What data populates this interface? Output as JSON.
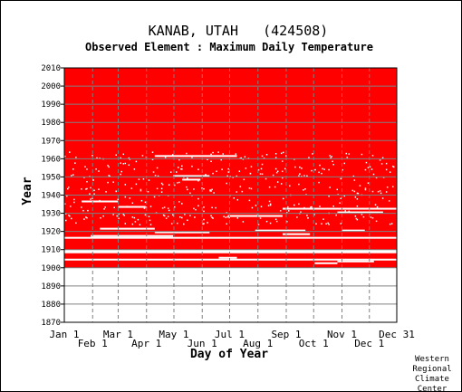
{
  "chart_data": {
    "type": "heatmap",
    "title": "KANAB, UTAH   (424508)",
    "subtitle": "Observed Element : Maximum Daily Temperature",
    "xlabel": "Day of Year",
    "ylabel": "Year",
    "ylim": [
      1870,
      2010
    ],
    "y_ticks": [
      1870,
      1880,
      1890,
      1900,
      1910,
      1920,
      1930,
      1940,
      1950,
      1960,
      1970,
      1980,
      1990,
      2000,
      2010
    ],
    "x_ticks_row1": [
      {
        "label": "Jan 1",
        "day": 1
      },
      {
        "label": "Mar 1",
        "day": 60
      },
      {
        "label": "May 1",
        "day": 121
      },
      {
        "label": "Jul 1",
        "day": 182
      },
      {
        "label": "Sep 1",
        "day": 244
      },
      {
        "label": "Nov 1",
        "day": 305
      },
      {
        "label": "Dec 31",
        "day": 365
      }
    ],
    "x_ticks_row2": [
      {
        "label": "Feb 1",
        "day": 32
      },
      {
        "label": "Apr 1",
        "day": 91
      },
      {
        "label": "Jun 1",
        "day": 152
      },
      {
        "label": "Aug 1",
        "day": 213
      },
      {
        "label": "Oct 1",
        "day": 274
      },
      {
        "label": "Dec 1",
        "day": 335
      }
    ],
    "grid": true,
    "colors": {
      "observed": "#ff0000",
      "missing": "#ffffff",
      "grid": "#808080"
    },
    "observed_year_blocks": [
      [
        1901,
        1904
      ],
      [
        1906,
        1908
      ],
      [
        1911,
        1916
      ],
      [
        1918,
        2010
      ]
    ],
    "missing_years": [
      1870,
      1900,
      1905,
      1909,
      1910,
      1917
    ],
    "missing_gaps": [
      {
        "year": 1906,
        "days": [
          170,
          190
        ]
      },
      {
        "year": 1903,
        "days": [
          275,
          300
        ]
      },
      {
        "year": 1904,
        "days": [
          300,
          340
        ]
      },
      {
        "year": 1918,
        "days": [
          30,
          120
        ]
      },
      {
        "year": 1920,
        "days": [
          100,
          160
        ]
      },
      {
        "year": 1921,
        "days": [
          210,
          265
        ]
      },
      {
        "year": 1921,
        "days": [
          305,
          330
        ]
      },
      {
        "year": 1919,
        "days": [
          240,
          270
        ]
      },
      {
        "year": 1922,
        "days": [
          40,
          100
        ]
      },
      {
        "year": 1929,
        "days": [
          180,
          240
        ]
      },
      {
        "year": 1931,
        "days": [
          300,
          350
        ]
      },
      {
        "year": 1933,
        "days": [
          240,
          365
        ]
      },
      {
        "year": 1934,
        "days": [
          60,
          90
        ]
      },
      {
        "year": 1937,
        "days": [
          20,
          60
        ]
      },
      {
        "year": 1949,
        "days": [
          130,
          150
        ]
      },
      {
        "year": 1951,
        "days": [
          120,
          160
        ]
      },
      {
        "year": 1962,
        "days": [
          100,
          190
        ]
      }
    ]
  },
  "credit": {
    "line1": "Western",
    "line2": "Regional",
    "line3": "Climate",
    "line4": "Center"
  }
}
